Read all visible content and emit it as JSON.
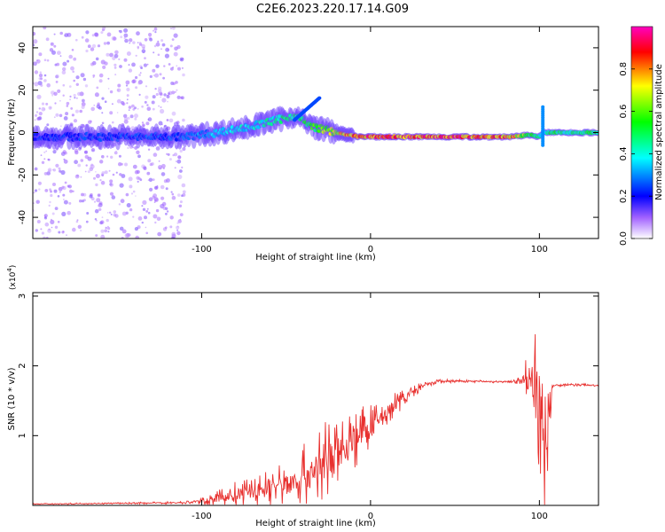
{
  "page": {
    "title": "C2E6.2023.220.17.14.G09"
  },
  "chart_data": [
    {
      "type": "heatmap",
      "title": "C2E6.2023.220.17.14.G09",
      "xlabel": "Height of straight line (km)",
      "ylabel": "Frequency (Hz)",
      "xlim": [
        -200,
        135
      ],
      "ylim": [
        -50,
        50
      ],
      "xticks": [
        -100,
        0,
        100
      ],
      "yticks": [
        -40,
        -20,
        0,
        20,
        40
      ],
      "colorbar": {
        "label": "Normalized spectral amplitude",
        "range": [
          0.0,
          1.0
        ],
        "ticks": [
          "0.0",
          "0.2",
          "0.4",
          "0.6",
          "0.8"
        ],
        "colormap": [
          "#ffffff",
          "#8000ff",
          "#0000ff",
          "#00ffff",
          "#00ff00",
          "#ffff00",
          "#ff0000",
          "#ff00c0"
        ]
      },
      "ridge": {
        "x": [
          -200,
          -150,
          -110,
          -90,
          -70,
          -55,
          -45,
          -35,
          -25,
          -15,
          -5,
          0,
          20,
          60,
          85,
          95,
          100,
          103,
          106,
          135
        ],
        "freq": [
          -2,
          -2,
          -2,
          0,
          3,
          6,
          8,
          3,
          1,
          -1,
          -2,
          -2,
          -2,
          -2,
          -2,
          -1,
          -2,
          0,
          0,
          0
        ],
        "amplitude": [
          0.25,
          0.28,
          0.3,
          0.4,
          0.45,
          0.5,
          0.55,
          0.6,
          0.75,
          0.85,
          0.95,
          0.97,
          0.98,
          0.97,
          0.9,
          0.6,
          0.5,
          0.45,
          0.55,
          0.55
        ]
      }
    },
    {
      "type": "line",
      "xlabel": "Height of straight line (km)",
      "ylabel": "SNR (10 * v/v)",
      "y_multiplier": "(x10",
      "y_multiplier_exp": "4",
      "y_multiplier_close": ")",
      "xlim": [
        -200,
        135
      ],
      "ylim": [
        0,
        3.05
      ],
      "xticks": [
        -100,
        0,
        100
      ],
      "yticks": [
        1,
        2,
        3
      ],
      "series": [
        {
          "color": "#e8312f",
          "x": [
            -200,
            -150,
            -110,
            -100,
            -90,
            -80,
            -70,
            -60,
            -50,
            -40,
            -30,
            -20,
            -10,
            0,
            10,
            20,
            30,
            40,
            60,
            80,
            90,
            95,
            100,
            103,
            105,
            108,
            110,
            120,
            135
          ],
          "y": [
            0.02,
            0.03,
            0.04,
            0.06,
            0.1,
            0.15,
            0.2,
            0.25,
            0.3,
            0.42,
            0.55,
            0.75,
            0.95,
            1.1,
            1.35,
            1.55,
            1.7,
            1.78,
            1.78,
            1.77,
            1.78,
            1.9,
            1.5,
            0.6,
            1.4,
            1.72,
            1.72,
            1.73,
            1.72
          ],
          "noise": [
            0.01,
            0.01,
            0.02,
            0.05,
            0.12,
            0.2,
            0.22,
            0.3,
            0.35,
            0.45,
            0.6,
            0.55,
            0.45,
            0.35,
            0.25,
            0.12,
            0.06,
            0.03,
            0.02,
            0.02,
            0.1,
            0.7,
            1.0,
            0.9,
            1.1,
            0.03,
            0.02,
            0.02,
            0.02
          ]
        }
      ]
    }
  ]
}
